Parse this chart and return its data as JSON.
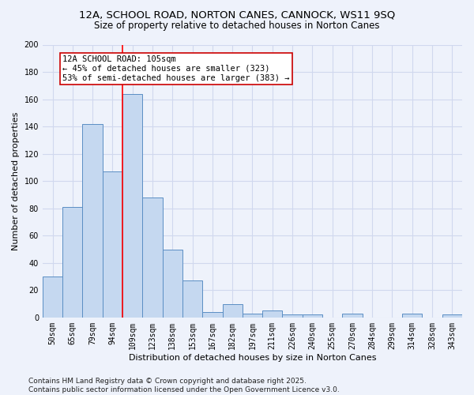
{
  "title1": "12A, SCHOOL ROAD, NORTON CANES, CANNOCK, WS11 9SQ",
  "title2": "Size of property relative to detached houses in Norton Canes",
  "xlabel": "Distribution of detached houses by size in Norton Canes",
  "ylabel": "Number of detached properties",
  "footer1": "Contains HM Land Registry data © Crown copyright and database right 2025.",
  "footer2": "Contains public sector information licensed under the Open Government Licence v3.0.",
  "bin_labels": [
    "50sqm",
    "65sqm",
    "79sqm",
    "94sqm",
    "109sqm",
    "123sqm",
    "138sqm",
    "153sqm",
    "167sqm",
    "182sqm",
    "197sqm",
    "211sqm",
    "226sqm",
    "240sqm",
    "255sqm",
    "270sqm",
    "284sqm",
    "299sqm",
    "314sqm",
    "328sqm",
    "343sqm"
  ],
  "bar_heights": [
    30,
    81,
    142,
    107,
    164,
    88,
    50,
    27,
    4,
    10,
    3,
    5,
    2,
    2,
    0,
    3,
    0,
    0,
    3,
    0,
    2
  ],
  "bar_color": "#c5d8f0",
  "bar_edge_color": "#5b8ec4",
  "red_line_index": 4,
  "annotation_line1": "12A SCHOOL ROAD: 105sqm",
  "annotation_line2": "← 45% of detached houses are smaller (323)",
  "annotation_line3": "53% of semi-detached houses are larger (383) →",
  "annotation_box_color": "#ffffff",
  "annotation_box_edge_color": "#cc0000",
  "ylim": [
    0,
    200
  ],
  "yticks": [
    0,
    20,
    40,
    60,
    80,
    100,
    120,
    140,
    160,
    180,
    200
  ],
  "background_color": "#eef2fb",
  "grid_color": "#d0d8ee",
  "title_fontsize": 9.5,
  "subtitle_fontsize": 8.5,
  "axis_label_fontsize": 8,
  "tick_fontsize": 7,
  "annotation_fontsize": 7.5,
  "footer_fontsize": 6.5
}
